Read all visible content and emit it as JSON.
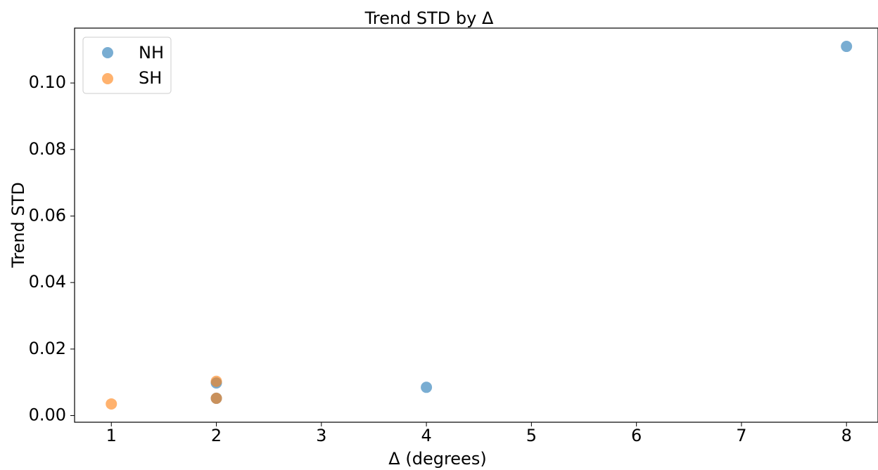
{
  "chart_data": {
    "type": "scatter",
    "title": "Trend STD by Δ",
    "xlabel": "Δ (degrees)",
    "ylabel": "Trend STD",
    "xlim": [
      0.65,
      8.3
    ],
    "ylim": [
      -0.002,
      0.1165
    ],
    "xticks": [
      "1",
      "2",
      "3",
      "4",
      "5",
      "6",
      "7",
      "8"
    ],
    "yticks": [
      "0.00",
      "0.02",
      "0.04",
      "0.06",
      "0.08",
      "0.10"
    ],
    "grid": false,
    "legend_position": "upper-left",
    "series": [
      {
        "name": "NH",
        "color": "#1f77b4",
        "points": [
          {
            "x": 2,
            "y": 0.0098
          },
          {
            "x": 2,
            "y": 0.0052
          },
          {
            "x": 4,
            "y": 0.0085
          },
          {
            "x": 8,
            "y": 0.111
          }
        ]
      },
      {
        "name": "SH",
        "color": "#ff7f0e",
        "points": [
          {
            "x": 1,
            "y": 0.0035
          },
          {
            "x": 2,
            "y": 0.0103
          },
          {
            "x": 2,
            "y": 0.0052
          }
        ]
      }
    ]
  }
}
